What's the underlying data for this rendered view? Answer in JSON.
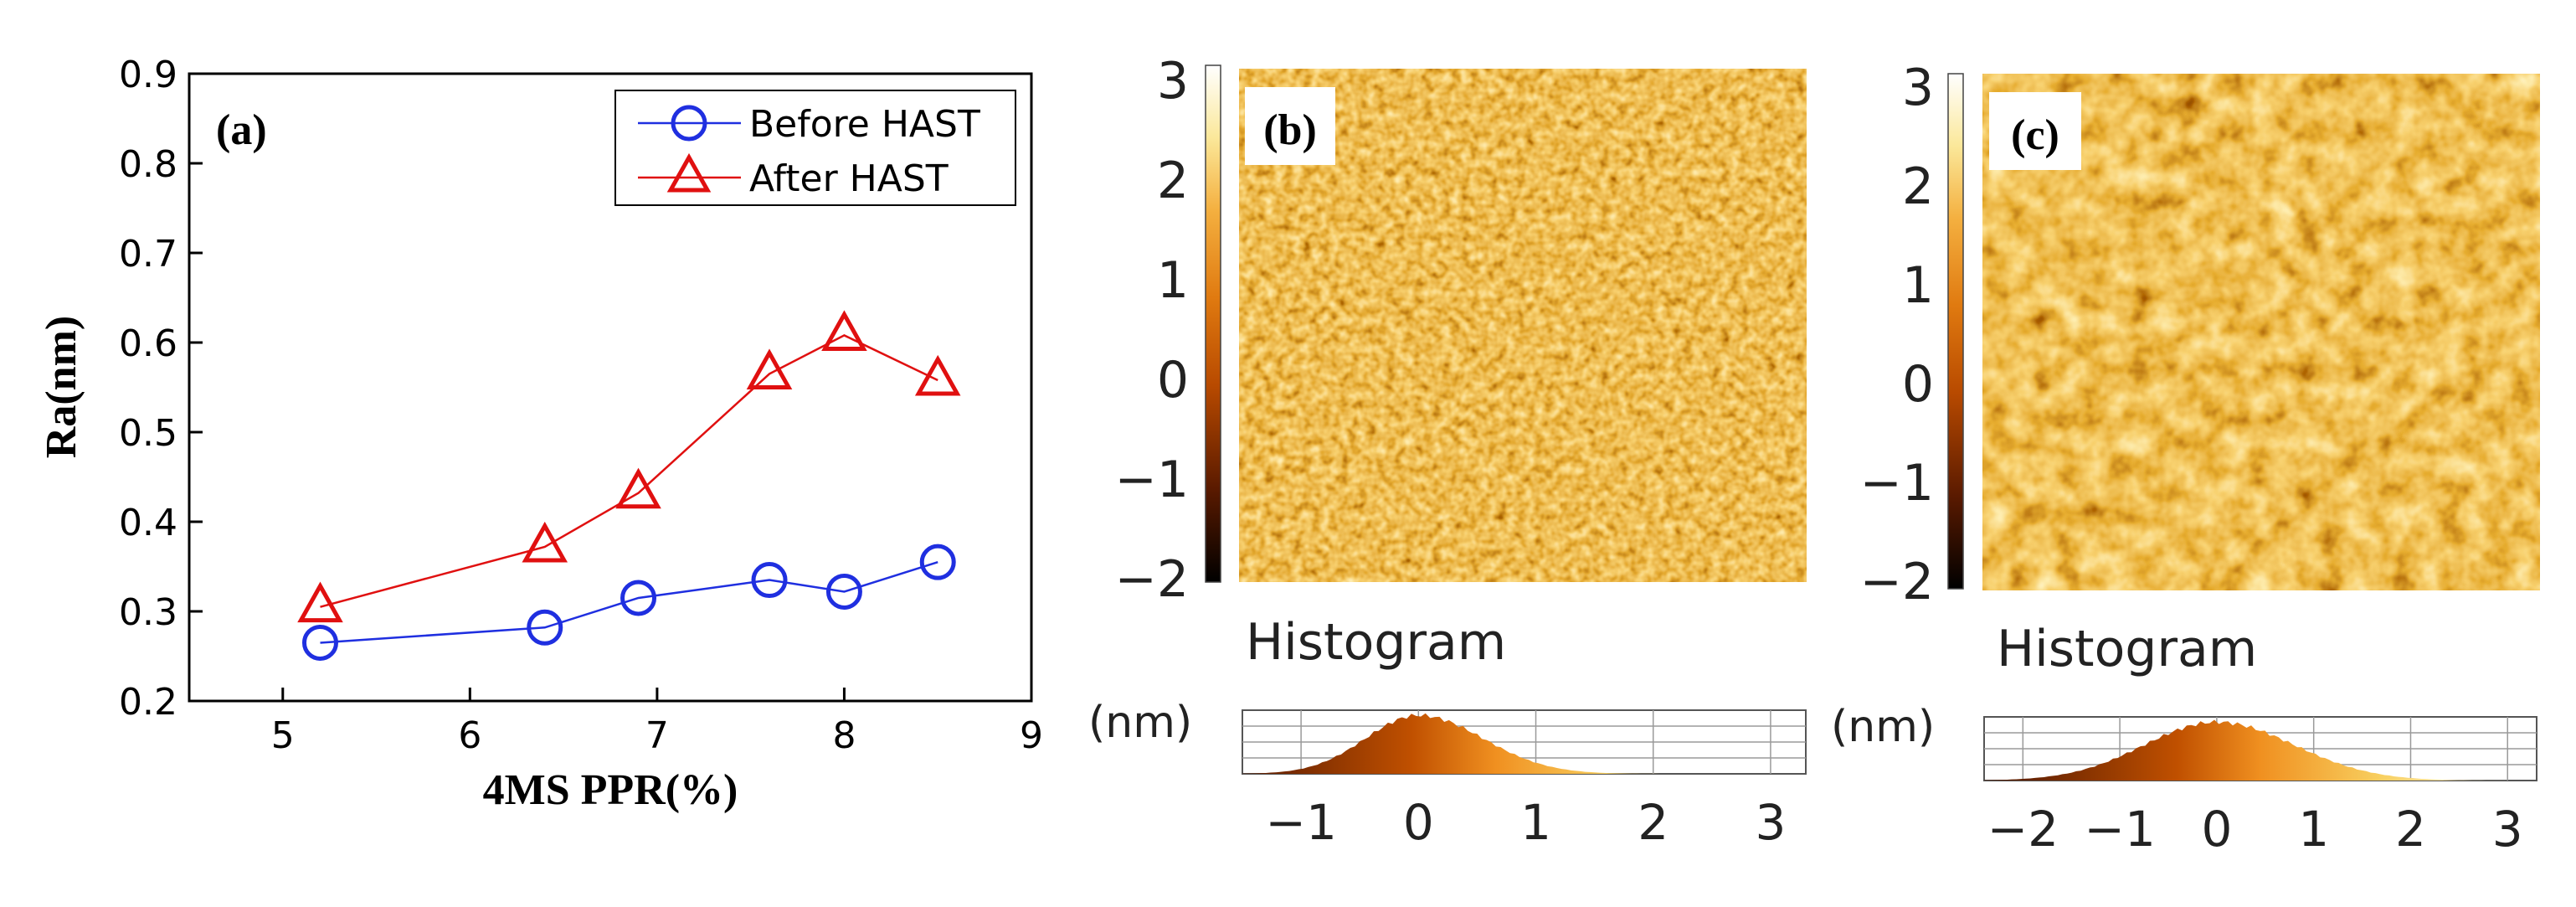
{
  "colors": {
    "before": "#1f2fe0",
    "after": "#e01010",
    "axis": "#000000"
  },
  "chart_data": [
    {
      "type": "line",
      "panel": "(a)",
      "xlabel": "4MS PPR(%)",
      "ylabel": "Ra(nm)",
      "xlim": [
        4.5,
        9
      ],
      "ylim": [
        0.2,
        0.9
      ],
      "xticks": [
        5,
        6,
        7,
        8,
        9
      ],
      "yticks": [
        "0.2",
        "0.3",
        "0.4",
        "0.5",
        "0.6",
        "0.7",
        "0.8",
        "0.9"
      ],
      "legend_position": "top-right",
      "x": [
        5.2,
        6.4,
        6.9,
        7.6,
        8.0,
        8.5
      ],
      "series": [
        {
          "name": "Before HAST",
          "marker": "circle",
          "values": [
            0.265,
            0.282,
            0.315,
            0.335,
            0.322,
            0.355
          ]
        },
        {
          "name": "After HAST",
          "marker": "triangle",
          "values": [
            0.305,
            0.372,
            0.432,
            0.565,
            0.608,
            0.558
          ]
        }
      ]
    },
    {
      "type": "heatmap",
      "panel": "(b)",
      "colorbar_ticks": [
        "3",
        "2",
        "1",
        "0",
        "−1",
        "−2"
      ],
      "colorbar_range": [
        -2,
        3
      ],
      "histogram_title": "Histogram",
      "histogram_unit": "(nm)",
      "histogram_ticks": [
        "−1",
        "0",
        "1",
        "2",
        "3"
      ],
      "histogram_range": [
        -1.5,
        3.3
      ],
      "histogram_peak": 0,
      "histogram_sigma_left": 0.45,
      "histogram_sigma_right": 0.55
    },
    {
      "type": "heatmap",
      "panel": "(c)",
      "colorbar_ticks": [
        "3",
        "2",
        "1",
        "0",
        "−1",
        "−2"
      ],
      "colorbar_range": [
        -2,
        3
      ],
      "histogram_title": "Histogram",
      "histogram_unit": "(nm)",
      "histogram_ticks": [
        "−2",
        "−1",
        "0",
        "1",
        "2",
        "3"
      ],
      "histogram_range": [
        -2.4,
        3.3
      ],
      "histogram_peak": 0,
      "histogram_sigma_left": 0.75,
      "histogram_sigma_right": 0.8
    }
  ]
}
